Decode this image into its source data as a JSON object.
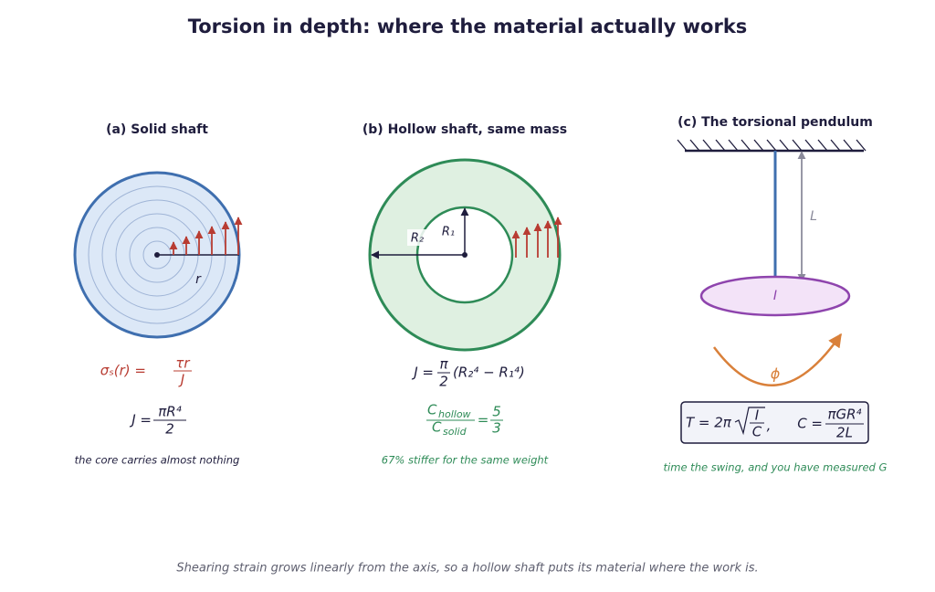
{
  "title": "Torsion in depth: where the material actually works",
  "panels": [
    {
      "title": "(a) Solid shaft",
      "radius_label": "r",
      "stress": {
        "lhs": "σₛ(r) =",
        "num": "τr",
        "den": "J"
      },
      "polar": {
        "lhs": "J =",
        "num": "πR⁴",
        "den": "2"
      },
      "caption": "the core carries almost nothing"
    },
    {
      "title": "(b) Hollow shaft, same mass",
      "outer_label": "R₂",
      "inner_label": "R₁",
      "polar": {
        "lhs": "J =",
        "num": "π",
        "den": "2",
        "rest": "(R₂⁴ − R₁⁴)"
      },
      "ratio": {
        "num": "C",
        "num_sub": "hollow",
        "den": "C",
        "den_sub": "solid",
        "eq": "=",
        "rnum": "5",
        "rden": "3"
      },
      "caption": "67% stiffer for the same weight"
    },
    {
      "title": "(c) The torsional pendulum",
      "length_label": "L",
      "inertia_label": "I",
      "angle_label": "ϕ",
      "period": {
        "lhs": "T = 2π",
        "num": "I",
        "den": "C",
        "sep": ","
      },
      "stiffness": {
        "lhs": "C =",
        "num": "πGR⁴",
        "den": "2L"
      },
      "caption": "time the swing, and you have measured G"
    }
  ],
  "footer": "Shearing strain grows linearly from the axis, so a hollow shaft puts its material where the work is."
}
